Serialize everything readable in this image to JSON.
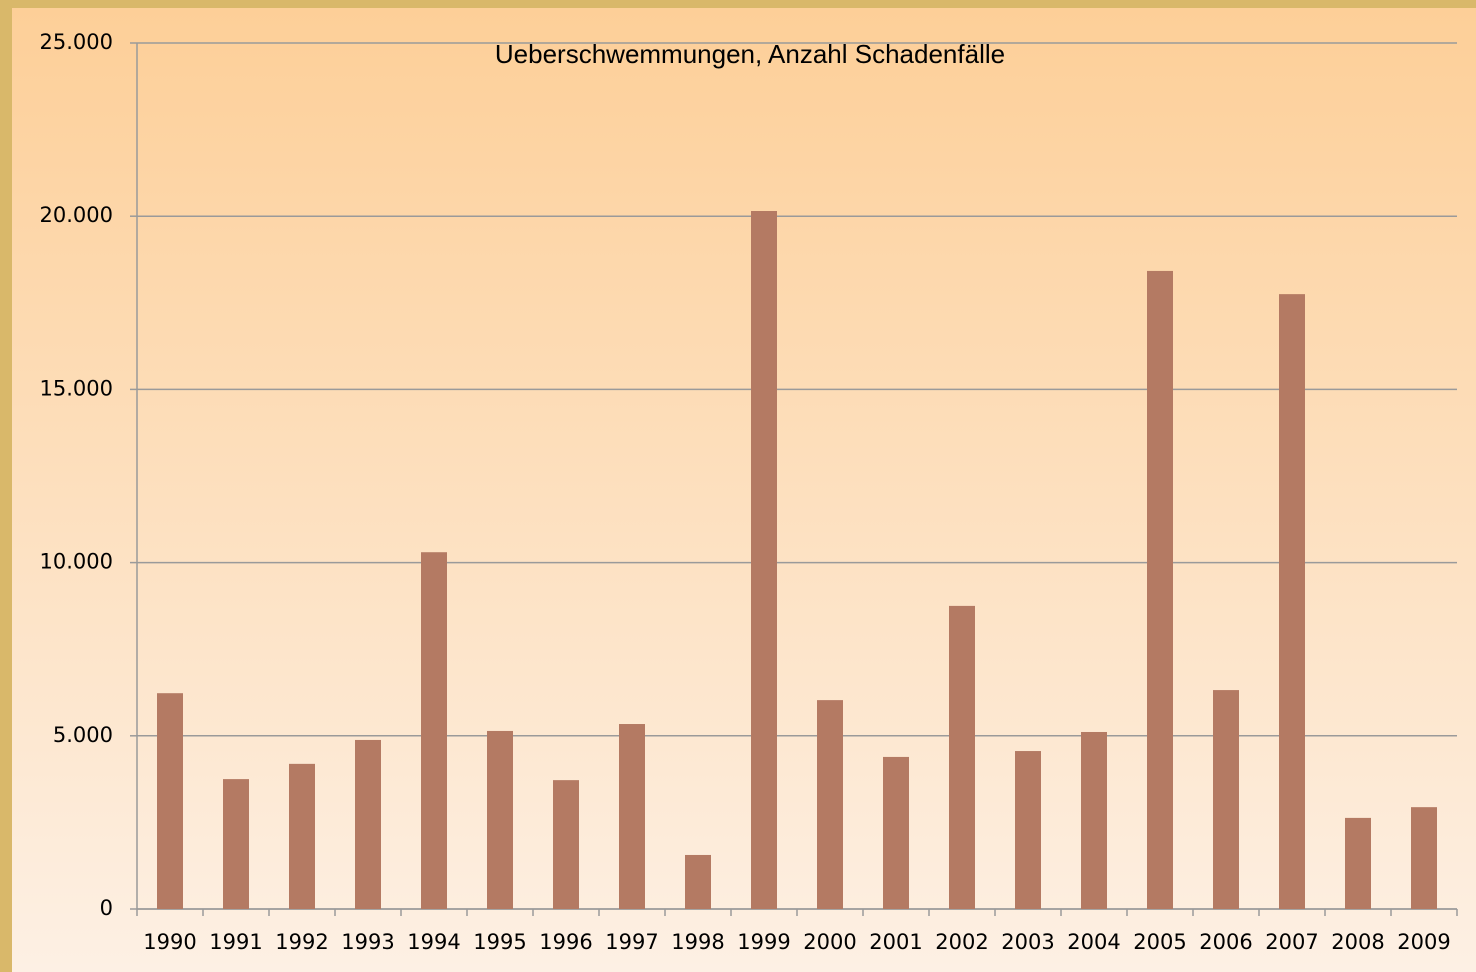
{
  "chart_data": {
    "type": "bar",
    "title": "Ueberschwemmungen, Anzahl Schadenfälle",
    "categories": [
      "1990",
      "1991",
      "1992",
      "1993",
      "1994",
      "1995",
      "1996",
      "1997",
      "1998",
      "1999",
      "2000",
      "2001",
      "2002",
      "2003",
      "2004",
      "2005",
      "2006",
      "2007",
      "2008",
      "2009"
    ],
    "values": [
      6230,
      3750,
      4190,
      4880,
      10300,
      5140,
      3720,
      5340,
      1560,
      20150,
      6030,
      4390,
      8750,
      4560,
      5110,
      18420,
      6320,
      17750,
      2630,
      2940
    ],
    "color": "#b47a63",
    "ylim": [
      0,
      25000
    ],
    "yticks": [
      0,
      {
        "value": 5000,
        "label": "5.000"
      },
      {
        "value": 10000,
        "label": "10.000"
      },
      {
        "value": 15000,
        "label": "15.000"
      },
      {
        "value": 20000,
        "label": "20.000"
      },
      {
        "value": 25000,
        "label": "25.000"
      }
    ],
    "grid": true
  }
}
